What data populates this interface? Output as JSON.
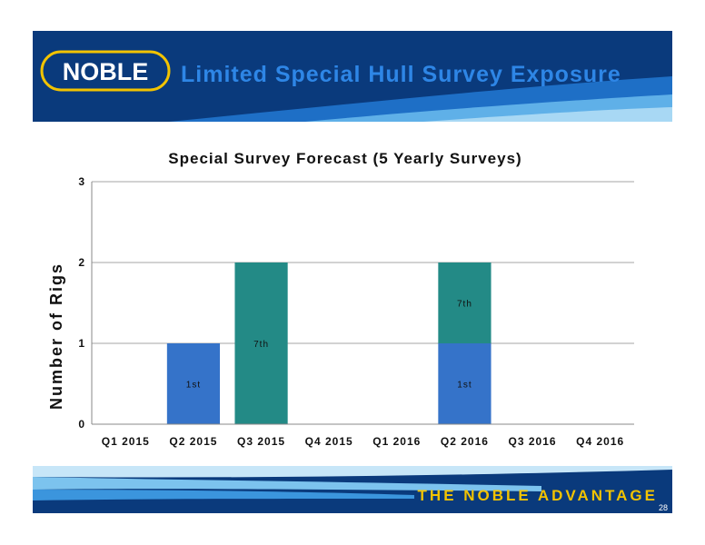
{
  "slide": {
    "title": "Limited Special Hull Survey Exposure",
    "logo_text": "NOBLE",
    "tagline": "THE NOBLE ADVANTAGE",
    "page_number": "28"
  },
  "colors": {
    "navy": "#0a3a7c",
    "title_blue": "#1e78d8",
    "light_blue": "#9fd2f0",
    "series_1st": "#3573c9",
    "series_7th": "#238a86"
  },
  "chart_data": {
    "type": "bar",
    "stacked": true,
    "title": "Special Survey Forecast (5 Yearly Surveys)",
    "xlabel": "",
    "ylabel": "Number of Rigs",
    "ylim": [
      0,
      3
    ],
    "yticks": [
      "0",
      "1",
      "2",
      "3"
    ],
    "grid": true,
    "legend": "none",
    "categories": [
      "Q1 2015",
      "Q2 2015",
      "Q3 2015",
      "Q4 2015",
      "Q1 2016",
      "Q2 2016",
      "Q3 2016",
      "Q4 2016"
    ],
    "series": [
      {
        "color": "#3573c9",
        "values": [
          0,
          1,
          0,
          0,
          0,
          1,
          0,
          0
        ],
        "data_labels": [
          "",
          "1st",
          "",
          "",
          "",
          "1st",
          "",
          ""
        ]
      },
      {
        "color": "#238a86",
        "values": [
          0,
          0,
          2,
          0,
          0,
          1,
          0,
          0
        ],
        "data_labels": [
          "",
          "",
          "7th",
          "",
          "",
          "7th",
          "",
          ""
        ]
      }
    ]
  }
}
